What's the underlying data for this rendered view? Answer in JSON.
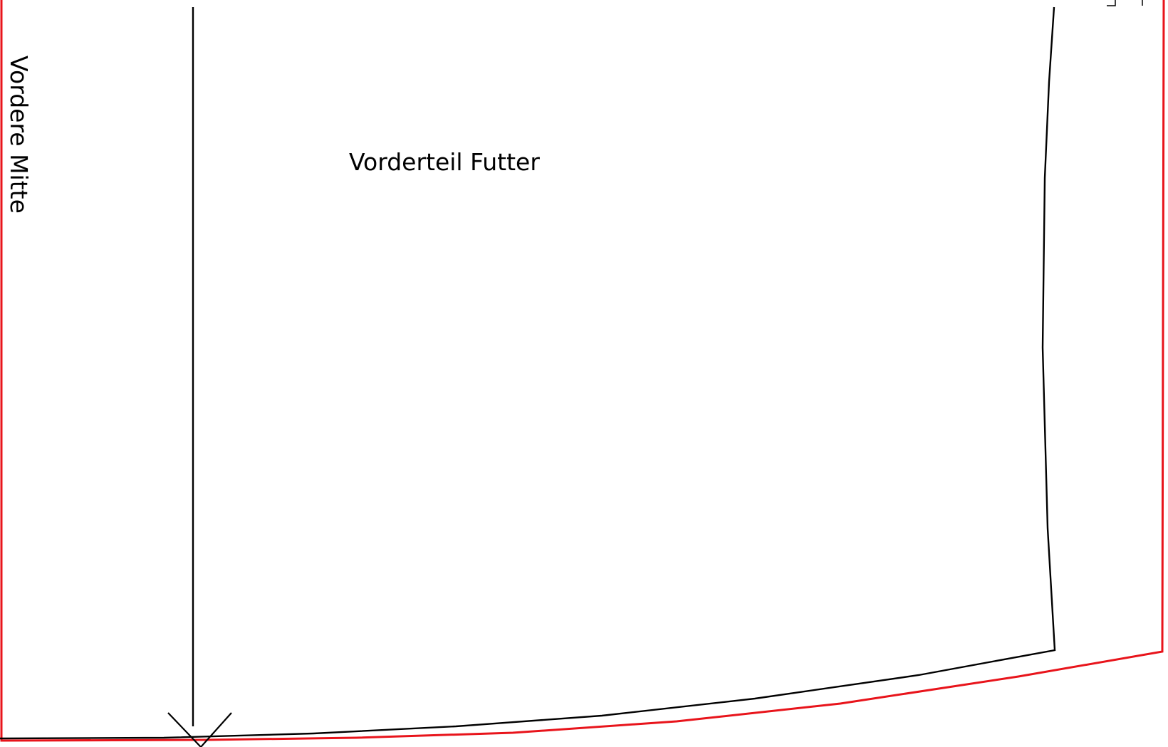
{
  "pattern": {
    "piece_label": "Vorderteil Futter",
    "center_label": "Vordere Mitte"
  },
  "colors": {
    "seam_allowance_line": "#e8141b",
    "stitch_line": "#000000",
    "background": "#ffffff"
  }
}
